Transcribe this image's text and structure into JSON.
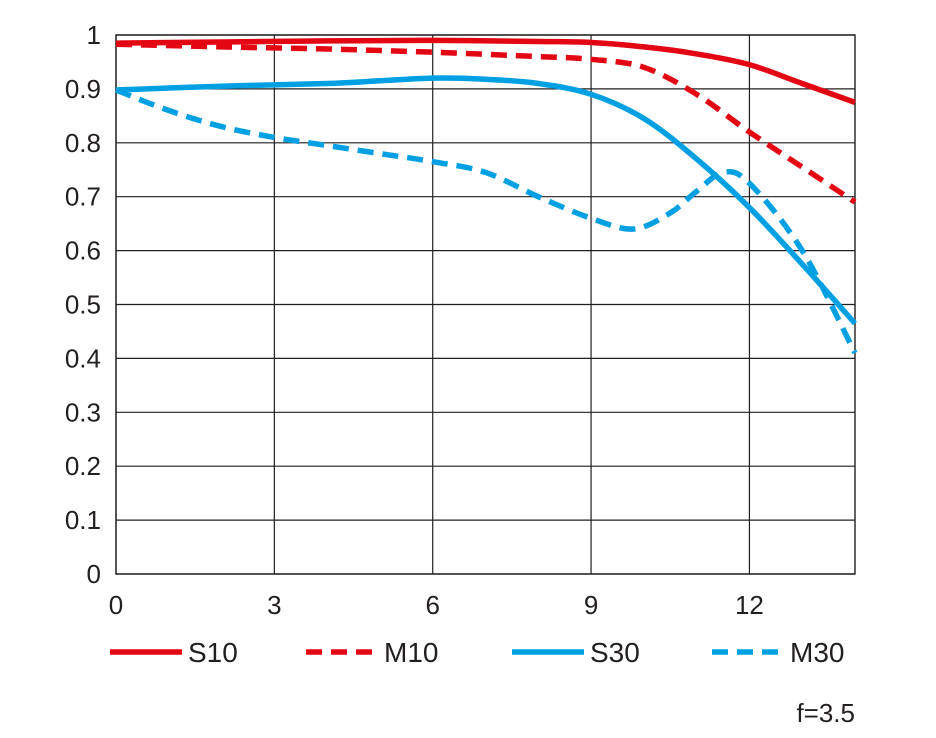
{
  "chart_data": {
    "type": "line",
    "xlim": [
      0,
      14
    ],
    "ylim": [
      0,
      1
    ],
    "xticks": [
      0,
      3,
      6,
      9,
      12
    ],
    "yticks": [
      0,
      0.1,
      0.2,
      0.3,
      0.4,
      0.5,
      0.6,
      0.7,
      0.8,
      0.9,
      1
    ],
    "xtick_labels": [
      "0",
      "3",
      "6",
      "9",
      "12"
    ],
    "ytick_labels": [
      "0",
      "0.1",
      "0.2",
      "0.3",
      "0.4",
      "0.5",
      "0.6",
      "0.7",
      "0.8",
      "0.9",
      "1"
    ],
    "grid": true,
    "legend_position": "bottom",
    "annotation": "f=3.5",
    "series": [
      {
        "name": "S10",
        "color": "#e30613",
        "style": "solid",
        "points": [
          [
            0,
            0.985
          ],
          [
            2,
            0.987
          ],
          [
            4,
            0.989
          ],
          [
            6,
            0.99
          ],
          [
            8,
            0.988
          ],
          [
            9,
            0.986
          ],
          [
            10,
            0.978
          ],
          [
            11,
            0.965
          ],
          [
            12,
            0.945
          ],
          [
            13,
            0.91
          ],
          [
            14,
            0.875
          ]
        ]
      },
      {
        "name": "M10",
        "color": "#e30613",
        "style": "dashed",
        "points": [
          [
            0,
            0.983
          ],
          [
            2,
            0.978
          ],
          [
            4,
            0.974
          ],
          [
            6,
            0.968
          ],
          [
            8,
            0.96
          ],
          [
            9,
            0.955
          ],
          [
            10,
            0.94
          ],
          [
            11,
            0.89
          ],
          [
            12,
            0.82
          ],
          [
            13,
            0.755
          ],
          [
            14,
            0.69
          ]
        ]
      },
      {
        "name": "S30",
        "color": "#00a0e3",
        "style": "solid",
        "points": [
          [
            0,
            0.898
          ],
          [
            2,
            0.905
          ],
          [
            4,
            0.91
          ],
          [
            5,
            0.915
          ],
          [
            6,
            0.92
          ],
          [
            7,
            0.918
          ],
          [
            8,
            0.91
          ],
          [
            9,
            0.89
          ],
          [
            10,
            0.845
          ],
          [
            11,
            0.77
          ],
          [
            12,
            0.68
          ],
          [
            13,
            0.575
          ],
          [
            14,
            0.465
          ]
        ]
      },
      {
        "name": "M30",
        "color": "#00a0e3",
        "style": "dashed",
        "points": [
          [
            0,
            0.898
          ],
          [
            1,
            0.86
          ],
          [
            2,
            0.83
          ],
          [
            3,
            0.81
          ],
          [
            4,
            0.795
          ],
          [
            5,
            0.78
          ],
          [
            6,
            0.765
          ],
          [
            7,
            0.745
          ],
          [
            8,
            0.7
          ],
          [
            9,
            0.66
          ],
          [
            9.8,
            0.64
          ],
          [
            10.5,
            0.67
          ],
          [
            11,
            0.71
          ],
          [
            11.5,
            0.745
          ],
          [
            12,
            0.725
          ],
          [
            13,
            0.6
          ],
          [
            14,
            0.41
          ]
        ]
      }
    ]
  }
}
